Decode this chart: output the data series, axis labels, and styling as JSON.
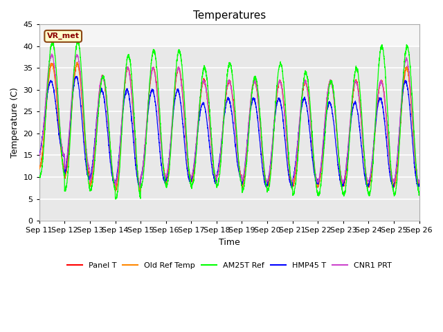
{
  "title": "Temperatures",
  "xlabel": "Time",
  "ylabel": "Temperature (C)",
  "ylim": [
    0,
    45
  ],
  "xlim": [
    0,
    15
  ],
  "x_tick_labels": [
    "Sep 11",
    "Sep 12",
    "Sep 13",
    "Sep 14",
    "Sep 15",
    "Sep 16",
    "Sep 17",
    "Sep 18",
    "Sep 19",
    "Sep 20",
    "Sep 21",
    "Sep 22",
    "Sep 23",
    "Sep 24",
    "Sep 25",
    "Sep 26"
  ],
  "annotation_text": "VR_met",
  "legend_labels": [
    "Panel T",
    "Old Ref Temp",
    "AM25T Ref",
    "HMP45 T",
    "CNR1 PRT"
  ],
  "line_colors": [
    "red",
    "#ff8800",
    "lime",
    "blue",
    "#cc44cc"
  ],
  "plot_bg_color": "#e8e8e8",
  "plot_bg_top_color": "#f0f0f0",
  "grid_color": "white"
}
